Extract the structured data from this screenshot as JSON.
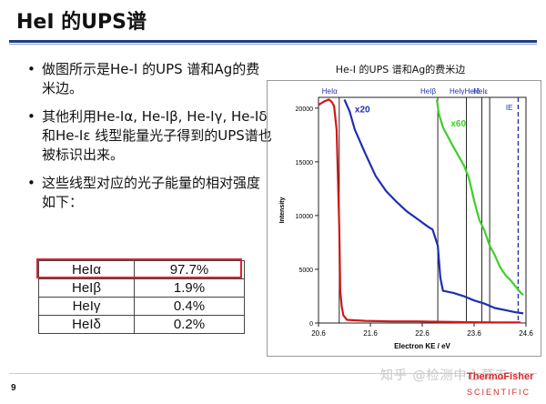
{
  "slide": {
    "title": "HeI 的UPS谱",
    "page_number": "9",
    "watermark": "知乎 @检测中心莫工",
    "brand_name": "ThermoFisher",
    "brand_sub": "SCIENTIFIC"
  },
  "bullets": [
    "做图所示是He-I 的UPS 谱和Ag的费米边。",
    "其他利用He-Iα, He-Iβ, He-Iγ, He-Iδ和He-Iε 线型能量光子得到的UPS谱也被标识出来。",
    "这些线型对应的光子能量的相对强度如下："
  ],
  "table": {
    "rows": [
      {
        "label": "HeIα",
        "value": "97.7%"
      },
      {
        "label": "HeIβ",
        "value": "1.9%"
      },
      {
        "label": "HeIγ",
        "value": "0.4%"
      },
      {
        "label": "HeIδ",
        "value": "0.2%"
      }
    ],
    "highlight_color": "#e0202a"
  },
  "chart_data": {
    "type": "line",
    "title": "He-I 的UPS 谱和Ag的费米边",
    "xlabel": "Electron KE / eV",
    "ylabel": "Intensity",
    "xlim": [
      20.6,
      24.6
    ],
    "ylim": [
      0,
      21000
    ],
    "xticks": [
      "20.6",
      "21.6",
      "22.6",
      "23.6",
      "24.6"
    ],
    "yticks": [
      "0",
      "5000",
      "10000",
      "15000",
      "20000"
    ],
    "line_markers": [
      {
        "label": "HeIα",
        "x": 21.0
      },
      {
        "label": "HeIβ",
        "x": 22.9
      },
      {
        "label": "HeIγ",
        "x": 23.45
      },
      {
        "label": "HeIδ",
        "x": 23.75
      },
      {
        "label": "HeIε",
        "x": 23.9
      },
      {
        "label": "IE",
        "x": 24.45
      }
    ],
    "annotations": [
      {
        "text": "x20",
        "x": 21.3,
        "y": 19600,
        "color": "#1f2fb0"
      },
      {
        "text": "x60",
        "x": 23.15,
        "y": 18300,
        "color": "#3fcf2a"
      }
    ],
    "series": [
      {
        "color": "#d01818",
        "x": [
          20.6,
          20.7,
          20.8,
          20.85,
          20.9,
          20.95,
          21.0,
          21.02,
          21.05,
          21.08,
          21.15,
          21.3,
          21.5,
          22.0,
          22.5,
          22.9,
          23.5,
          24.0,
          24.5
        ],
        "y": [
          20300,
          20600,
          20800,
          20600,
          20200,
          18000,
          9000,
          3000,
          1500,
          700,
          300,
          250,
          200,
          150,
          150,
          120,
          80,
          60,
          50
        ]
      },
      {
        "color": "#1f2fb0",
        "x": [
          21.1,
          21.2,
          21.3,
          21.5,
          21.7,
          21.9,
          22.1,
          22.3,
          22.5,
          22.7,
          22.8,
          22.9,
          22.95,
          23.0,
          23.2,
          23.4,
          23.6,
          23.8,
          24.0,
          24.2,
          24.4,
          24.55
        ],
        "y": [
          20800,
          19700,
          18000,
          15800,
          13700,
          12300,
          11300,
          10400,
          9700,
          9000,
          8700,
          7200,
          4200,
          3000,
          2800,
          2500,
          2100,
          1800,
          1400,
          1200,
          1000,
          900
        ]
      },
      {
        "color": "#3fcf2a",
        "x": [
          22.88,
          22.92,
          23.0,
          23.2,
          23.4,
          23.5,
          23.6,
          23.7,
          23.8,
          23.9,
          24.0,
          24.1,
          24.2,
          24.3,
          24.4,
          24.5,
          24.55
        ],
        "y": [
          20800,
          19500,
          18200,
          16400,
          14700,
          13500,
          11400,
          9600,
          8600,
          7200,
          6300,
          5200,
          4500,
          4000,
          3400,
          2800,
          2600
        ]
      }
    ]
  }
}
